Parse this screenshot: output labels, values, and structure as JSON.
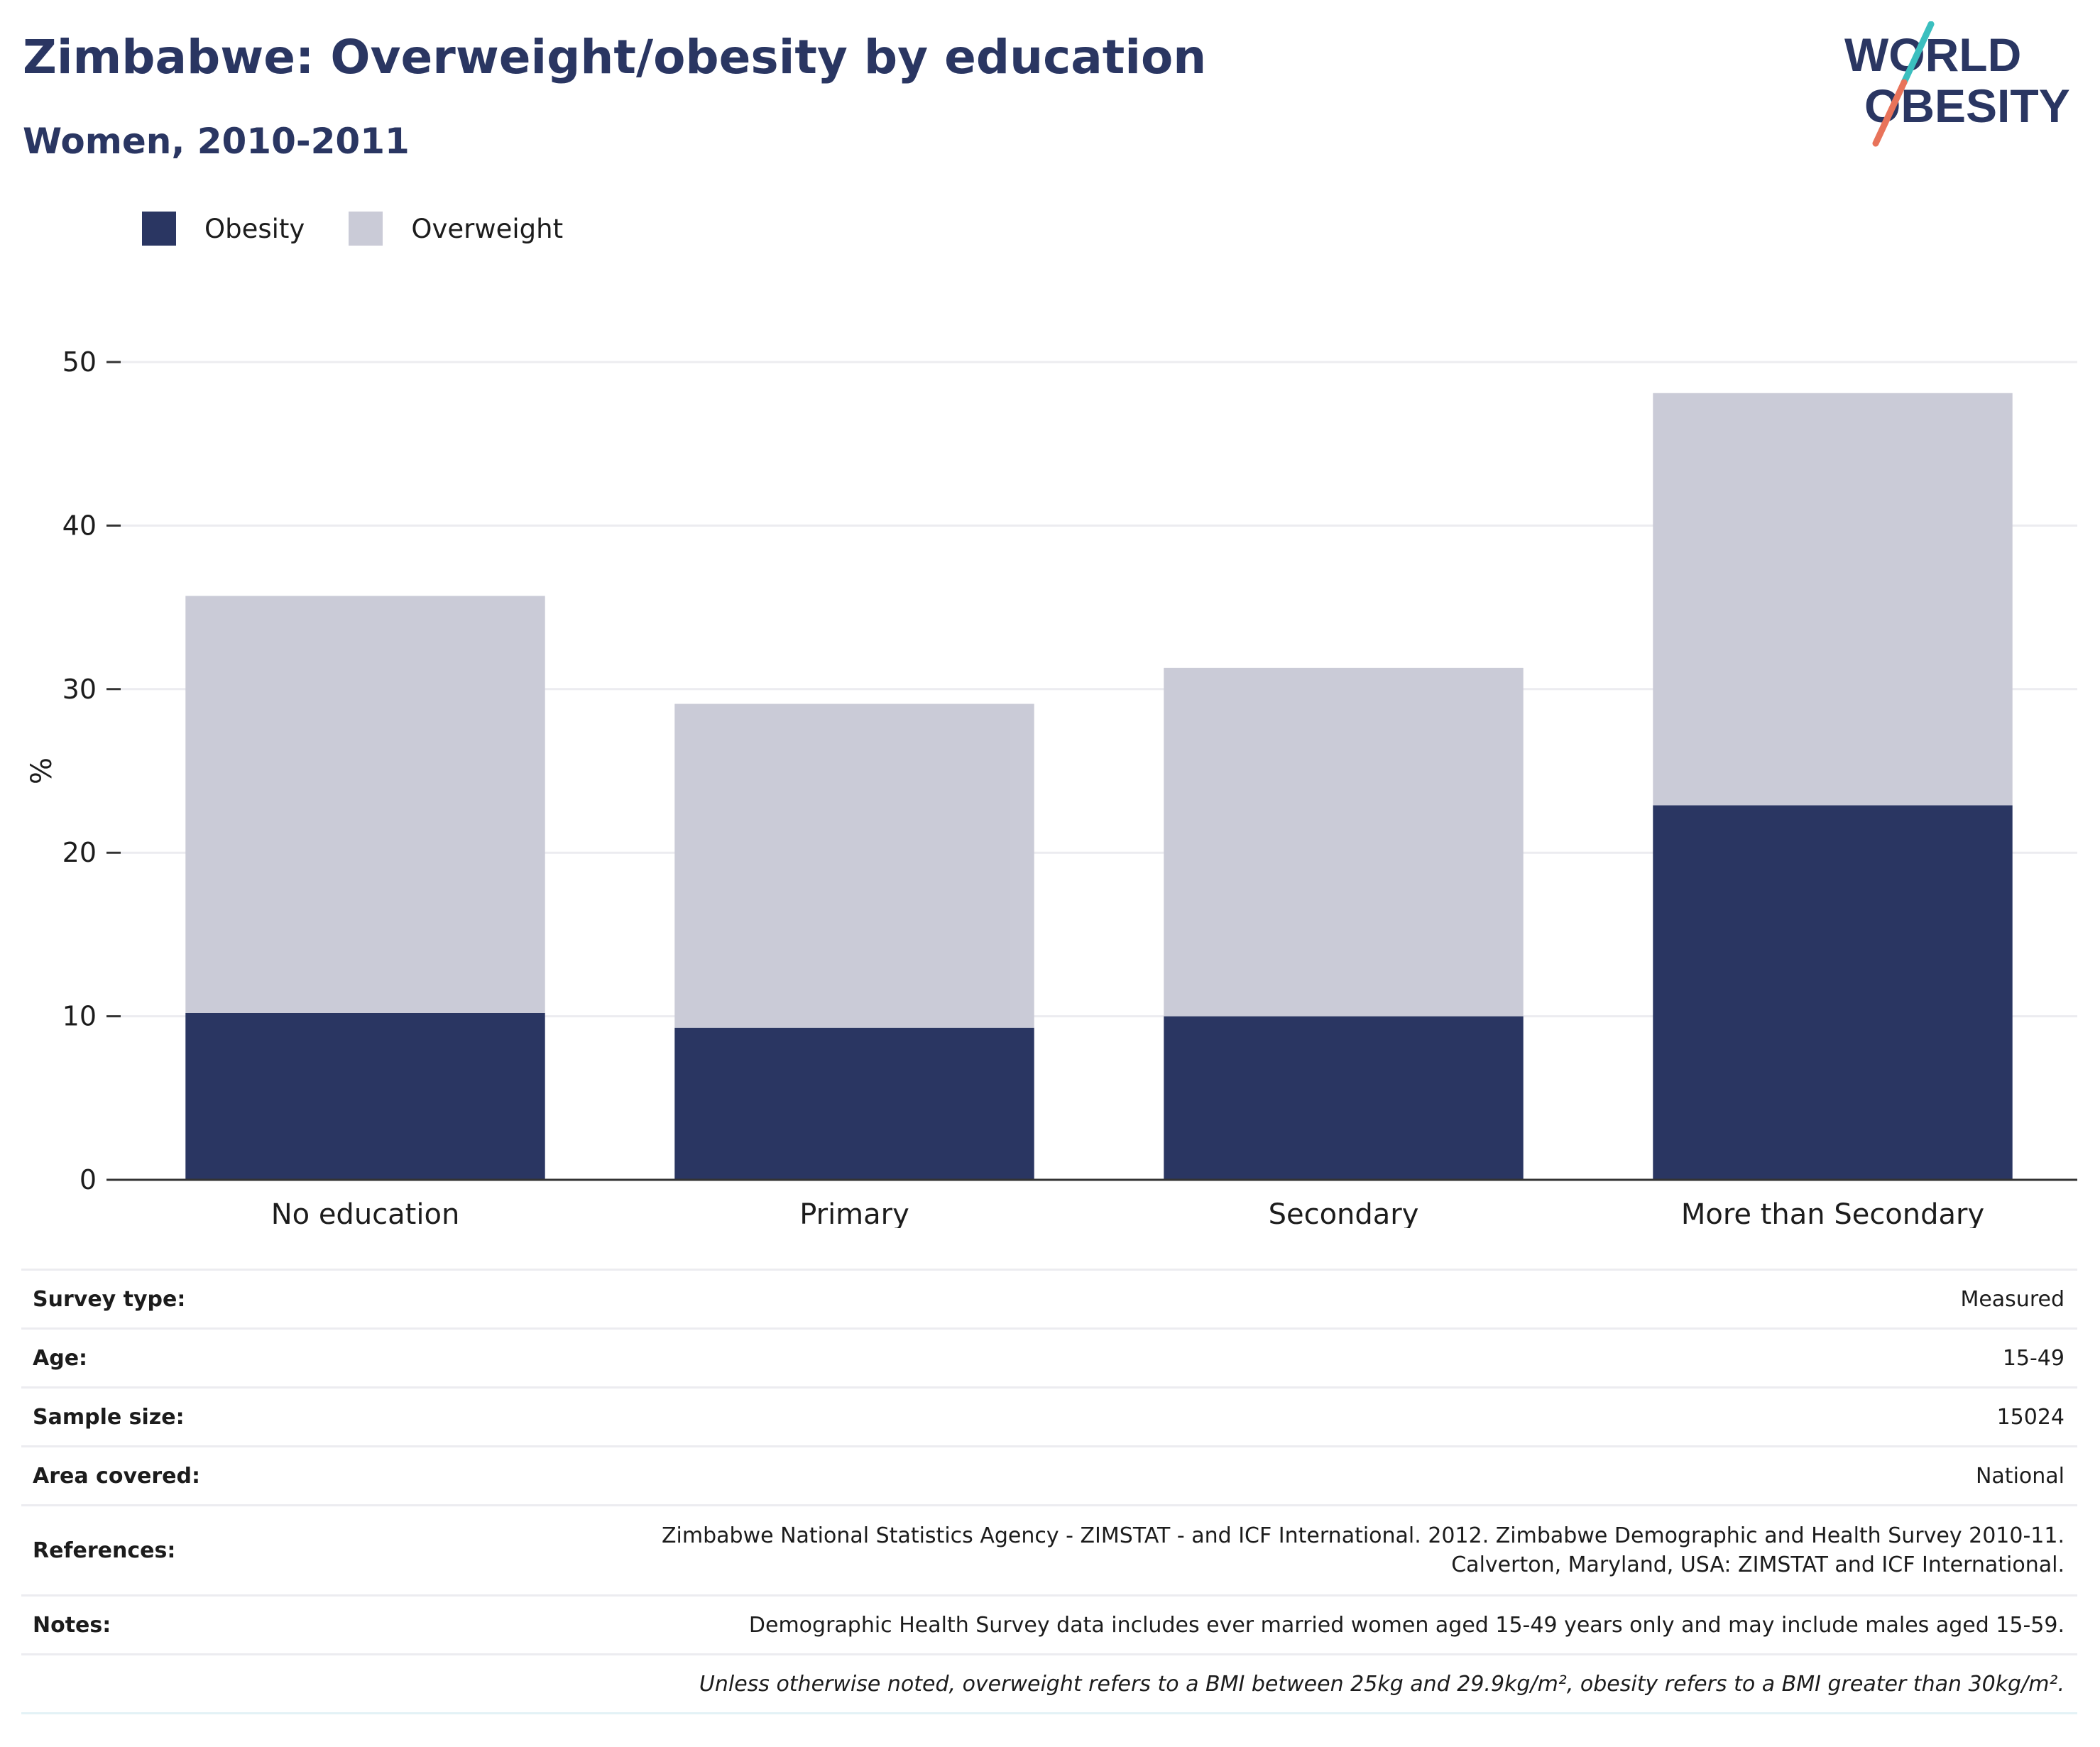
{
  "title": "Zimbabwe: Overweight/obesity by education",
  "subtitle": "Women, 2010-2011",
  "logo": {
    "line1": "WORLD",
    "line2": "OBESITY",
    "slash_colors": [
      "#3bbfbf",
      "#e8735a"
    ]
  },
  "colors": {
    "obesity": "#2a3662",
    "overweight": "#cacbd7",
    "title": "#2a3662",
    "grid": "#ececf0",
    "axis": "#333333"
  },
  "chart_data": {
    "type": "bar",
    "stacked": true,
    "categories": [
      "No education",
      "Primary",
      "Secondary",
      "More than Secondary"
    ],
    "series": [
      {
        "name": "Obesity",
        "values": [
          10.2,
          9.3,
          10.0,
          22.9
        ]
      },
      {
        "name": "Overweight",
        "values": [
          25.5,
          19.8,
          21.3,
          25.2
        ]
      }
    ],
    "ylabel": "%",
    "xlabel": "",
    "ylim": [
      0,
      50
    ],
    "yticks": [
      0,
      10,
      20,
      30,
      40,
      50
    ],
    "grid": true,
    "legend": "top-left"
  },
  "info": [
    {
      "key": "Survey type:",
      "value": "Measured"
    },
    {
      "key": "Age:",
      "value": "15-49"
    },
    {
      "key": "Sample size:",
      "value": "15024"
    },
    {
      "key": "Area covered:",
      "value": "National"
    },
    {
      "key": "References:",
      "value": "Zimbabwe National Statistics Agency - ZIMSTAT - and ICF International. 2012. Zimbabwe Demographic and Health Survey 2010-11.",
      "value2": "Calverton, Maryland, USA: ZIMSTAT and ICF International."
    },
    {
      "key": "Notes:",
      "value": "Demographic Health Survey data includes ever married women aged 15-49 years only and may include males aged 15-59."
    },
    {
      "key": "",
      "value": "Unless otherwise noted, overweight refers to a BMI between 25kg and 29.9kg/m², obesity refers to a BMI greater than 30kg/m²."
    }
  ]
}
